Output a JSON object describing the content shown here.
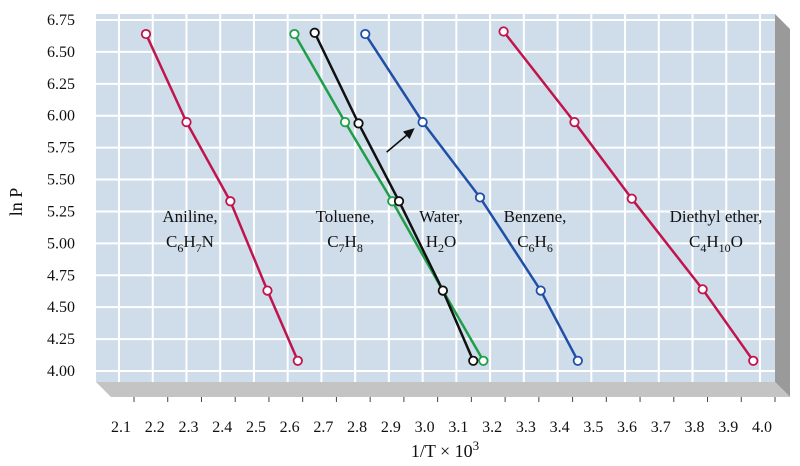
{
  "chart_data": {
    "type": "line",
    "xlabel": "1/T × 10³",
    "ylabel": "ln P",
    "xlim": [
      2.1,
      4.0
    ],
    "ylim": [
      4.0,
      6.75
    ],
    "xticks": [
      "2.1",
      "2.2",
      "2.3",
      "2.4",
      "2.5",
      "2.6",
      "2.7",
      "2.8",
      "2.9",
      "3.0",
      "3.1",
      "3.2",
      "3.3",
      "3.4",
      "3.5",
      "3.6",
      "3.7",
      "3.8",
      "3.9",
      "4.0"
    ],
    "yticks": [
      "4.00",
      "4.25",
      "4.50",
      "4.75",
      "5.00",
      "5.25",
      "5.50",
      "5.75",
      "6.00",
      "6.25",
      "6.50",
      "6.75"
    ],
    "grid": true,
    "colors": {
      "plot_background": "#cfdcea",
      "grid": "#ffffff",
      "frame_side": "#9a9a9a",
      "frame_bottom": "#c4c4c4"
    },
    "series": [
      {
        "name": "Aniline, C6H7N",
        "label_lines": [
          [
            "Aniline,"
          ],
          [
            "C",
            "6",
            "H",
            "7",
            "N"
          ]
        ],
        "color": "#c0144c",
        "x": [
          2.18,
          2.3,
          2.43,
          2.54,
          2.63
        ],
        "y": [
          6.64,
          5.95,
          5.33,
          4.63,
          4.08
        ]
      },
      {
        "name": "Toluene, C7H8",
        "label_lines": [
          [
            "Toluene,"
          ],
          [
            "C",
            "7",
            "H",
            "8"
          ]
        ],
        "color": "#1f9e48",
        "x": [
          2.62,
          2.77,
          2.91,
          3.06,
          3.18
        ],
        "y": [
          6.64,
          5.95,
          5.33,
          4.63,
          4.08
        ]
      },
      {
        "name": "Water, H2O",
        "label_lines": [
          [
            "Water,"
          ],
          [
            "H",
            "2",
            "O"
          ]
        ],
        "color": "#111111",
        "x": [
          2.68,
          2.81,
          2.93,
          3.06,
          3.15
        ],
        "y": [
          6.65,
          5.94,
          5.33,
          4.63,
          4.08
        ]
      },
      {
        "name": "Benzene, C6H6",
        "label_lines": [
          [
            "Benzene,"
          ],
          [
            "C",
            "6",
            "H",
            "6"
          ]
        ],
        "color": "#1f4fa6",
        "x": [
          2.83,
          3.0,
          3.17,
          3.35,
          3.46
        ],
        "y": [
          6.64,
          5.95,
          5.36,
          4.63,
          4.08
        ]
      },
      {
        "name": "Diethyl ether, C4H10O",
        "label_lines": [
          [
            "Diethyl ether,"
          ],
          [
            "C",
            "4",
            "H",
            "10",
            "O"
          ]
        ],
        "color": "#c0144c",
        "x": [
          3.24,
          3.45,
          3.62,
          3.83,
          3.98
        ],
        "y": [
          6.66,
          5.95,
          5.35,
          4.64,
          4.08
        ]
      }
    ]
  }
}
